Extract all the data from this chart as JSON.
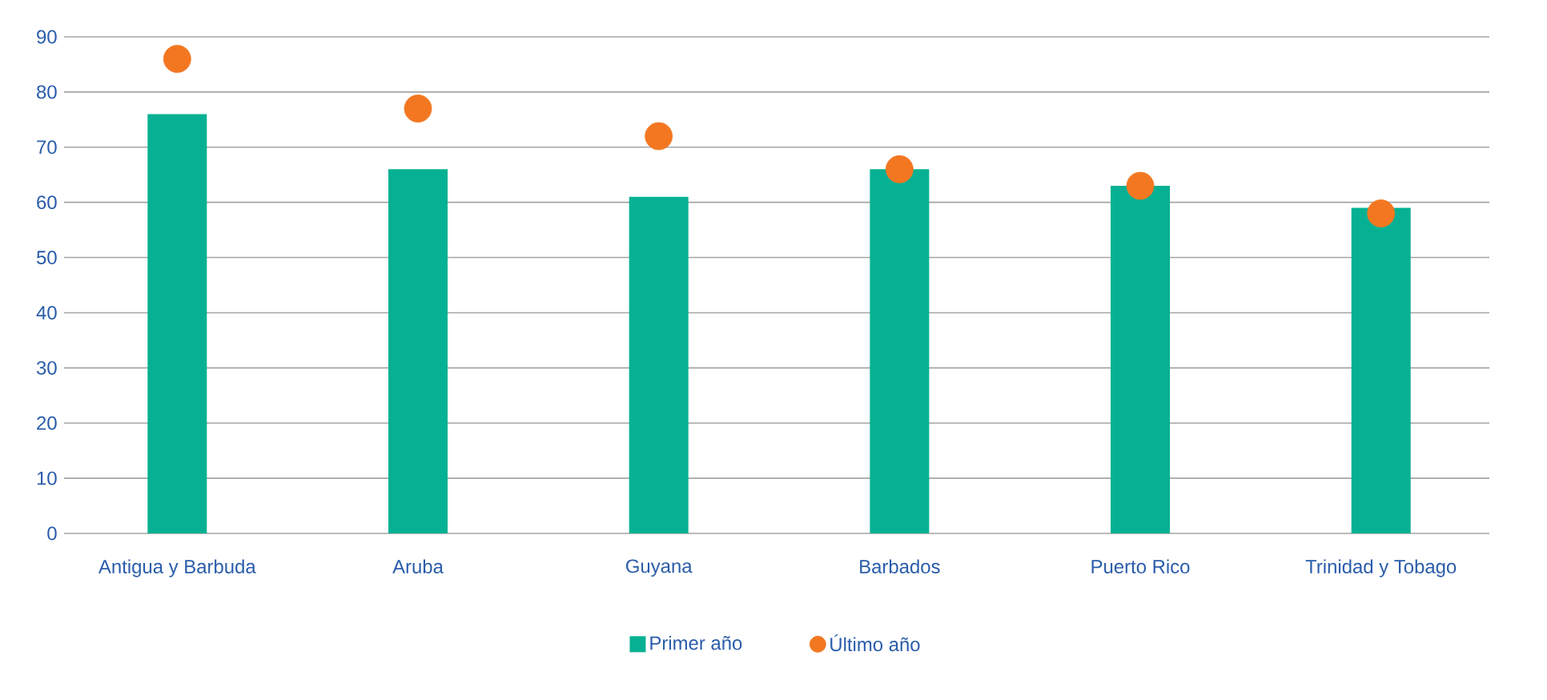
{
  "chart_data": {
    "type": "bar",
    "categories": [
      "Antigua y Barbuda",
      "Aruba",
      "Guyana",
      "Barbados",
      "Puerto Rico",
      "Trinidad y Tobago"
    ],
    "series": [
      {
        "name": "Primer año",
        "color": "#06b193",
        "values": [
          76,
          66,
          61,
          66,
          63,
          59
        ]
      },
      {
        "name": "Último año",
        "color": "#f37721",
        "type": "scatter",
        "values": [
          86,
          77,
          72,
          66,
          63,
          58
        ]
      }
    ],
    "ylim": [
      0,
      90
    ],
    "yticks": [
      0,
      10,
      20,
      30,
      40,
      50,
      60,
      70,
      80,
      90
    ],
    "grid": "y",
    "legend": "bottom"
  }
}
